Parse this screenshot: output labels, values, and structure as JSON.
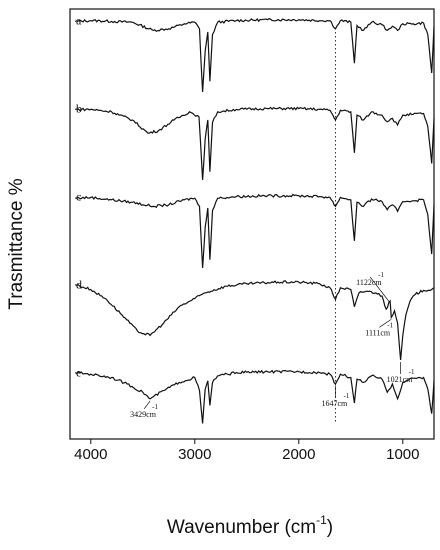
{
  "chart_data": {
    "type": "line",
    "title": "",
    "xlabel": "Wavenumber (cm",
    "xlabel_sup": "-1",
    "xlabel_close": ")",
    "ylabel": "Trasmittance %",
    "xlim": [
      4200,
      700
    ],
    "x_reversed": true,
    "xticks": [
      4000,
      3000,
      2000,
      1000
    ],
    "tick_labels": [
      "4000",
      "3000",
      "2000",
      "1000"
    ],
    "grid": false,
    "reference_line": {
      "x": 1647,
      "style": "dotted"
    },
    "series": [
      {
        "name": "a",
        "baseline": 0.92,
        "points": [
          [
            4150,
            0.91
          ],
          [
            4000,
            0.92
          ],
          [
            3800,
            0.91
          ],
          [
            3600,
            0.9
          ],
          [
            3400,
            0.8
          ],
          [
            3250,
            0.82
          ],
          [
            3100,
            0.88
          ],
          [
            3000,
            0.9
          ],
          [
            2955,
            0.82
          ],
          [
            2925,
            0.05
          ],
          [
            2900,
            0.55
          ],
          [
            2875,
            0.78
          ],
          [
            2855,
            0.18
          ],
          [
            2830,
            0.75
          ],
          [
            2780,
            0.9
          ],
          [
            2600,
            0.92
          ],
          [
            2300,
            0.93
          ],
          [
            2000,
            0.93
          ],
          [
            1800,
            0.92
          ],
          [
            1700,
            0.92
          ],
          [
            1647,
            0.82
          ],
          [
            1600,
            0.92
          ],
          [
            1500,
            0.9
          ],
          [
            1465,
            0.4
          ],
          [
            1440,
            0.86
          ],
          [
            1378,
            0.8
          ],
          [
            1300,
            0.9
          ],
          [
            1200,
            0.87
          ],
          [
            1150,
            0.8
          ],
          [
            1100,
            0.85
          ],
          [
            1050,
            0.8
          ],
          [
            1000,
            0.88
          ],
          [
            900,
            0.88
          ],
          [
            800,
            0.89
          ],
          [
            760,
            0.75
          ],
          [
            722,
            0.28
          ],
          [
            700,
            0.85
          ]
        ]
      },
      {
        "name": "b",
        "baseline": 0.92,
        "points": [
          [
            4150,
            0.91
          ],
          [
            4000,
            0.91
          ],
          [
            3800,
            0.88
          ],
          [
            3600,
            0.78
          ],
          [
            3450,
            0.62
          ],
          [
            3350,
            0.65
          ],
          [
            3200,
            0.78
          ],
          [
            3050,
            0.88
          ],
          [
            2960,
            0.82
          ],
          [
            2925,
            0.05
          ],
          [
            2900,
            0.55
          ],
          [
            2875,
            0.78
          ],
          [
            2855,
            0.15
          ],
          [
            2830,
            0.75
          ],
          [
            2780,
            0.88
          ],
          [
            2600,
            0.91
          ],
          [
            2300,
            0.92
          ],
          [
            2000,
            0.92
          ],
          [
            1800,
            0.91
          ],
          [
            1700,
            0.9
          ],
          [
            1647,
            0.78
          ],
          [
            1600,
            0.9
          ],
          [
            1500,
            0.88
          ],
          [
            1465,
            0.38
          ],
          [
            1440,
            0.84
          ],
          [
            1378,
            0.78
          ],
          [
            1300,
            0.88
          ],
          [
            1200,
            0.84
          ],
          [
            1150,
            0.76
          ],
          [
            1100,
            0.8
          ],
          [
            1050,
            0.72
          ],
          [
            1000,
            0.84
          ],
          [
            900,
            0.85
          ],
          [
            800,
            0.86
          ],
          [
            760,
            0.7
          ],
          [
            722,
            0.25
          ],
          [
            700,
            0.8
          ]
        ]
      },
      {
        "name": "c",
        "baseline": 0.92,
        "points": [
          [
            4150,
            0.9
          ],
          [
            4000,
            0.91
          ],
          [
            3800,
            0.88
          ],
          [
            3600,
            0.85
          ],
          [
            3400,
            0.8
          ],
          [
            3250,
            0.82
          ],
          [
            3100,
            0.88
          ],
          [
            3000,
            0.9
          ],
          [
            2955,
            0.8
          ],
          [
            2925,
            0.05
          ],
          [
            2900,
            0.55
          ],
          [
            2875,
            0.78
          ],
          [
            2855,
            0.15
          ],
          [
            2830,
            0.75
          ],
          [
            2780,
            0.9
          ],
          [
            2600,
            0.92
          ],
          [
            2300,
            0.93
          ],
          [
            2000,
            0.93
          ],
          [
            1800,
            0.92
          ],
          [
            1700,
            0.91
          ],
          [
            1647,
            0.8
          ],
          [
            1600,
            0.91
          ],
          [
            1500,
            0.88
          ],
          [
            1465,
            0.38
          ],
          [
            1440,
            0.85
          ],
          [
            1378,
            0.8
          ],
          [
            1300,
            0.89
          ],
          [
            1200,
            0.86
          ],
          [
            1150,
            0.76
          ],
          [
            1100,
            0.82
          ],
          [
            1050,
            0.74
          ],
          [
            1000,
            0.86
          ],
          [
            900,
            0.87
          ],
          [
            800,
            0.88
          ],
          [
            760,
            0.7
          ],
          [
            722,
            0.22
          ],
          [
            700,
            0.82
          ]
        ]
      },
      {
        "name": "d",
        "baseline": 0.92,
        "points": [
          [
            4150,
            0.92
          ],
          [
            4000,
            0.86
          ],
          [
            3850,
            0.74
          ],
          [
            3700,
            0.55
          ],
          [
            3550,
            0.35
          ],
          [
            3430,
            0.3
          ],
          [
            3300,
            0.45
          ],
          [
            3150,
            0.65
          ],
          [
            3000,
            0.75
          ],
          [
            2900,
            0.82
          ],
          [
            2700,
            0.9
          ],
          [
            2500,
            0.93
          ],
          [
            2200,
            0.95
          ],
          [
            2000,
            0.95
          ],
          [
            1800,
            0.93
          ],
          [
            1700,
            0.88
          ],
          [
            1647,
            0.74
          ],
          [
            1600,
            0.88
          ],
          [
            1500,
            0.86
          ],
          [
            1465,
            0.65
          ],
          [
            1420,
            0.82
          ],
          [
            1350,
            0.84
          ],
          [
            1260,
            0.82
          ],
          [
            1200,
            0.78
          ],
          [
            1160,
            0.62
          ],
          [
            1122,
            0.72
          ],
          [
            1111,
            0.52
          ],
          [
            1080,
            0.6
          ],
          [
            1050,
            0.45
          ],
          [
            1035,
            0.2
          ],
          [
            1021,
            0.0
          ],
          [
            1000,
            0.3
          ],
          [
            970,
            0.55
          ],
          [
            930,
            0.72
          ],
          [
            880,
            0.8
          ],
          [
            800,
            0.85
          ],
          [
            722,
            0.86
          ],
          [
            700,
            0.88
          ]
        ]
      },
      {
        "name": "e",
        "baseline": 0.92,
        "points": [
          [
            4150,
            0.92
          ],
          [
            4000,
            0.9
          ],
          [
            3800,
            0.86
          ],
          [
            3650,
            0.78
          ],
          [
            3500,
            0.68
          ],
          [
            3429,
            0.6
          ],
          [
            3300,
            0.7
          ],
          [
            3150,
            0.8
          ],
          [
            3000,
            0.86
          ],
          [
            2955,
            0.7
          ],
          [
            2925,
            0.3
          ],
          [
            2900,
            0.72
          ],
          [
            2875,
            0.82
          ],
          [
            2855,
            0.52
          ],
          [
            2830,
            0.8
          ],
          [
            2780,
            0.88
          ],
          [
            2600,
            0.92
          ],
          [
            2300,
            0.93
          ],
          [
            2000,
            0.93
          ],
          [
            1800,
            0.92
          ],
          [
            1700,
            0.9
          ],
          [
            1647,
            0.78
          ],
          [
            1600,
            0.9
          ],
          [
            1500,
            0.86
          ],
          [
            1465,
            0.55
          ],
          [
            1440,
            0.84
          ],
          [
            1378,
            0.8
          ],
          [
            1300,
            0.88
          ],
          [
            1200,
            0.84
          ],
          [
            1150,
            0.68
          ],
          [
            1100,
            0.78
          ],
          [
            1050,
            0.6
          ],
          [
            1000,
            0.8
          ],
          [
            900,
            0.85
          ],
          [
            800,
            0.86
          ],
          [
            760,
            0.72
          ],
          [
            722,
            0.42
          ],
          [
            700,
            0.82
          ]
        ]
      }
    ],
    "annotations": [
      {
        "text": "1122cm",
        "sup": "-1",
        "x": 1122,
        "series": "d"
      },
      {
        "text": "1111cm",
        "sup": "-1",
        "x": 1111,
        "series": "d"
      },
      {
        "text": "1021cm",
        "sup": "-1",
        "x": 1021,
        "series": "d"
      },
      {
        "text": "3429cm",
        "sup": "-1",
        "x": 3429,
        "series": "e"
      },
      {
        "text": "1647cm",
        "sup": "-1",
        "x": 1647,
        "series": "e"
      }
    ]
  }
}
